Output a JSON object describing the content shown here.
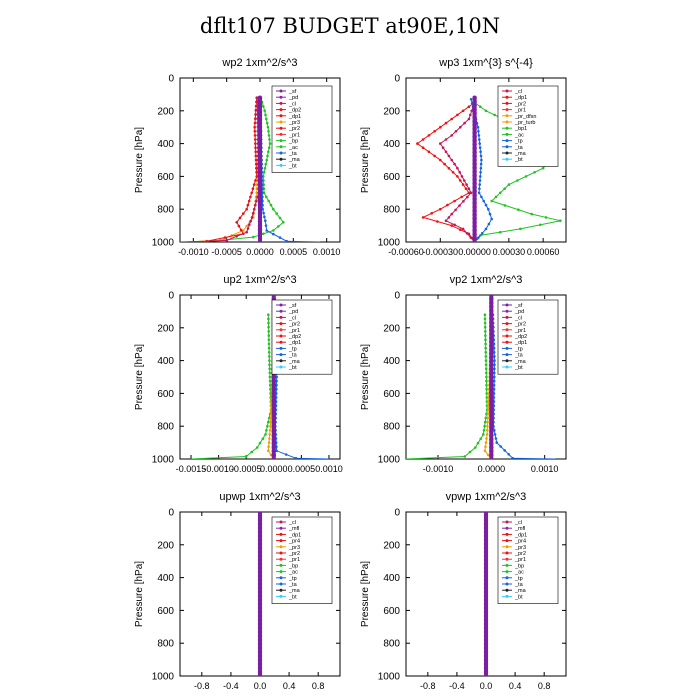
{
  "page": {
    "title": "dflt107  BUDGET at90E,10N"
  },
  "chart_data": [
    {
      "type": "line",
      "title": "wp2  1xm^2/s^3",
      "ylabel": "Pressure [hPa]",
      "ylim": [
        1000,
        0
      ],
      "yticks": [
        "0",
        "200",
        "400",
        "600",
        "800",
        "1000"
      ],
      "xlim": [
        -0.0012,
        0.0012
      ],
      "xticks": [
        -0.001,
        -0.0005,
        0,
        0.0005,
        0.001
      ],
      "xtick_labels": [
        "-0.0010",
        "-0.0005",
        "0.0000",
        "0.0005",
        "0.0010"
      ],
      "legend": [
        "_sf",
        "_pd",
        "_cl",
        "_dp2",
        "_dp1",
        "_pr3",
        "_pr2",
        "_pr1",
        "_bp",
        "_ac",
        "_ta",
        "_ma",
        "_bt"
      ],
      "series": [
        {
          "name": "_pr1",
          "color": "#22c322",
          "points": [
            [
              1e-05,
              120
            ],
            [
              7e-05,
              200
            ],
            [
              0.00012,
              300
            ],
            [
              0.00015,
              400
            ],
            [
              0.0001,
              500
            ],
            [
              5e-05,
              600
            ],
            [
              6e-05,
              700
            ],
            [
              0.0002,
              800
            ],
            [
              0.00035,
              880
            ],
            [
              0.0002,
              930
            ],
            [
              -0.0001,
              970
            ],
            [
              -0.0006,
              990
            ],
            [
              -0.0011,
              1000
            ]
          ]
        },
        {
          "name": "_pr3",
          "color": "#f0a000",
          "points": [
            [
              0,
              120
            ],
            [
              -2e-05,
              400
            ],
            [
              -5e-05,
              700
            ],
            [
              -0.0001,
              850
            ],
            [
              -0.00025,
              930
            ],
            [
              -0.0006,
              990
            ],
            [
              -0.0011,
              1000
            ]
          ]
        },
        {
          "name": "_dp2",
          "color": "#ee1111",
          "points": [
            [
              -5e-05,
              120
            ],
            [
              -8e-05,
              300
            ],
            [
              -5e-05,
              600
            ],
            [
              -0.0002,
              800
            ],
            [
              -0.00035,
              880
            ],
            [
              -0.00025,
              950
            ],
            [
              -0.0008,
              995
            ],
            [
              -0.0012,
              1000
            ]
          ]
        },
        {
          "name": "_cl",
          "color": "#c2185b",
          "points": [
            [
              -4e-05,
              120
            ],
            [
              -3e-05,
              400
            ],
            [
              -2e-05,
              700
            ],
            [
              -0.00012,
              850
            ],
            [
              -0.0002,
              940
            ],
            [
              -0.0005,
              990
            ],
            [
              -0.001,
              1000
            ]
          ]
        },
        {
          "name": "_ac",
          "color": "#1565e0",
          "points": [
            [
              0,
              120
            ],
            [
              2e-05,
              400
            ],
            [
              4e-05,
              800
            ],
            [
              8e-05,
              870
            ],
            [
              0.0001,
              930
            ],
            [
              0.0004,
              995
            ],
            [
              0.0009,
              1000
            ]
          ]
        },
        {
          "name": "_bt",
          "color": "#7b1fa2",
          "points": [
            [
              0,
              120
            ],
            [
              0,
              300
            ],
            [
              0,
              600
            ],
            [
              0,
              800
            ],
            [
              0,
              1000
            ]
          ]
        }
      ]
    },
    {
      "type": "line",
      "title": "wp3  1xm^{3} s^{-4}",
      "ylabel": "Pressure [hPa]",
      "ylim": [
        1000,
        0
      ],
      "yticks": [
        "0",
        "200",
        "400",
        "600",
        "800",
        "1000"
      ],
      "xlim": [
        -0.0006,
        0.0008
      ],
      "xticks": [
        -0.0006,
        -0.0003,
        0,
        0.0003,
        0.0006
      ],
      "xtick_labels": [
        "-0.00060",
        "-0.00030",
        "0.00000",
        "0.00030",
        "0.00060"
      ],
      "legend": [
        "_cl",
        "_dp1",
        "_pr2",
        "_pr1",
        "_pr_dfsn",
        "_pr_turb",
        "_bp1",
        "_ac",
        "_tp",
        "_ta",
        "_ma",
        "_bt"
      ],
      "series": [
        {
          "name": "_bp1",
          "color": "#22c322",
          "points": [
            [
              0,
              150
            ],
            [
              0.0001,
              200
            ],
            [
              0.0004,
              300
            ],
            [
              0.0007,
              450
            ],
            [
              0.0006,
              550
            ],
            [
              0.0003,
              650
            ],
            [
              0.00015,
              750
            ],
            [
              0.0005,
              830
            ],
            [
              0.00075,
              870
            ],
            [
              0.0004,
              920
            ],
            [
              5e-05,
              960
            ],
            [
              0,
              1000
            ]
          ]
        },
        {
          "name": "_pr2",
          "color": "#ee1111",
          "points": [
            [
              0,
              150
            ],
            [
              -0.0001,
              200
            ],
            [
              -0.0003,
              300
            ],
            [
              -0.0005,
              400
            ],
            [
              -0.0003,
              500
            ],
            [
              -0.00015,
              600
            ],
            [
              -5e-05,
              700
            ],
            [
              -0.0003,
              800
            ],
            [
              -0.00045,
              850
            ],
            [
              -0.0002,
              900
            ],
            [
              -5e-05,
              950
            ],
            [
              0,
              1000
            ]
          ]
        },
        {
          "name": "_dp1",
          "color": "#c2185b",
          "points": [
            [
              0,
              150
            ],
            [
              -5e-05,
              250
            ],
            [
              -0.0002,
              350
            ],
            [
              -0.0003,
              400
            ],
            [
              -0.00015,
              550
            ],
            [
              -3e-05,
              700
            ],
            [
              -0.0002,
              830
            ],
            [
              -0.00025,
              870
            ],
            [
              -0.0001,
              920
            ],
            [
              0,
              1000
            ]
          ]
        },
        {
          "name": "_ac",
          "color": "#1565e0",
          "points": [
            [
              -3e-05,
              130
            ],
            [
              3e-05,
              300
            ],
            [
              6e-05,
              500
            ],
            [
              4e-05,
              700
            ],
            [
              0.00012,
              800
            ],
            [
              0.00015,
              860
            ],
            [
              0.0001,
              920
            ],
            [
              0,
              1000
            ]
          ]
        },
        {
          "name": "_bt",
          "color": "#7b1fa2",
          "points": [
            [
              0,
              120
            ],
            [
              0,
              500
            ],
            [
              0,
              1000
            ]
          ]
        }
      ]
    },
    {
      "type": "line",
      "title": "up2  1xm^2/s^3",
      "ylabel": "Pressure [hPa]",
      "ylim": [
        1000,
        0
      ],
      "yticks": [
        "0",
        "200",
        "400",
        "600",
        "800",
        "1000"
      ],
      "xlim": [
        -0.0017,
        0.0012
      ],
      "xticks": [
        -0.0015,
        -0.001,
        -0.0005,
        0,
        0.0005,
        0.001
      ],
      "xtick_labels": [
        "-0.0015",
        "-0.0010",
        "-0.0005",
        "0.0000",
        "0.0005",
        "0.0010"
      ],
      "legend": [
        "_sf",
        "_pd",
        "_cl",
        "_pr2",
        "_pr1",
        "_dp2",
        "_dp1",
        "_tp",
        "_ta",
        "_ma",
        "_bt"
      ],
      "series": [
        {
          "name": "_pr1",
          "color": "#22c322",
          "points": [
            [
              -0.0001,
              120
            ],
            [
              -8e-05,
              400
            ],
            [
              -5e-05,
              700
            ],
            [
              -0.00015,
              850
            ],
            [
              -0.0003,
              930
            ],
            [
              -0.0005,
              985
            ],
            [
              -0.0015,
              1000
            ]
          ]
        },
        {
          "name": "_pr2",
          "color": "#f0a000",
          "points": [
            [
              0,
              120
            ],
            [
              -3e-05,
              500
            ],
            [
              -6e-05,
              800
            ],
            [
              -0.0001,
              950
            ],
            [
              0,
              1000
            ]
          ]
        },
        {
          "name": "_tp",
          "color": "#1565e0",
          "points": [
            [
              3e-05,
              120
            ],
            [
              6e-05,
              400
            ],
            [
              3e-05,
              800
            ],
            [
              5e-05,
              950
            ],
            [
              0.0004,
              995
            ],
            [
              0.001,
              1000
            ]
          ]
        },
        {
          "name": "_bt",
          "color": "#7b1fa2",
          "points": [
            [
              0,
              0
            ],
            [
              0,
              500
            ],
            [
              0,
              1000
            ]
          ]
        }
      ]
    },
    {
      "type": "line",
      "title": "vp2  1xm^2/s^3",
      "ylabel": "Pressure [hPa]",
      "ylim": [
        1000,
        0
      ],
      "yticks": [
        "0",
        "200",
        "400",
        "600",
        "800",
        "1000"
      ],
      "xlim": [
        -0.0016,
        0.0014
      ],
      "xticks": [
        -0.001,
        0,
        0.001
      ],
      "xtick_labels": [
        "-0.0010",
        "0.0000",
        "0.0010"
      ],
      "legend": [
        "_sf",
        "_pd",
        "_cl",
        "_pr2",
        "_pr1",
        "_dp2",
        "_dp1",
        "_tp",
        "_ta",
        "_ma",
        "_bt"
      ],
      "series": [
        {
          "name": "_pr1",
          "color": "#22c322",
          "points": [
            [
              -0.00012,
              120
            ],
            [
              -0.0001,
              400
            ],
            [
              -8e-05,
              700
            ],
            [
              -0.00015,
              850
            ],
            [
              -0.0003,
              930
            ],
            [
              -0.0005,
              985
            ],
            [
              -0.0016,
              1000
            ]
          ]
        },
        {
          "name": "_pr2",
          "color": "#f0a000",
          "points": [
            [
              0,
              120
            ],
            [
              -3e-05,
              500
            ],
            [
              -8e-05,
              850
            ],
            [
              -0.00012,
              950
            ],
            [
              0,
              1000
            ]
          ]
        },
        {
          "name": "_tp",
          "color": "#1565e0",
          "points": [
            [
              3e-05,
              120
            ],
            [
              6e-05,
              400
            ],
            [
              4e-05,
              800
            ],
            [
              0.0001,
              900
            ],
            [
              0.0004,
              995
            ],
            [
              0.0012,
              1000
            ]
          ]
        },
        {
          "name": "_bt",
          "color": "#7b1fa2",
          "points": [
            [
              0,
              0
            ],
            [
              0,
              500
            ],
            [
              0,
              1000
            ]
          ]
        }
      ]
    },
    {
      "type": "line",
      "title": "upwp  1xm^2/s^3",
      "ylabel": "Pressure [hPa]",
      "ylim": [
        1000,
        0
      ],
      "yticks": [
        "0",
        "200",
        "400",
        "600",
        "800",
        "1000"
      ],
      "xlim": [
        -1.1,
        1.1
      ],
      "xticks": [
        -0.8,
        -0.4,
        0,
        0.4,
        0.8
      ],
      "xtick_labels": [
        "-0.8",
        "-0.4",
        "0.0",
        "0.4",
        "0.8"
      ],
      "legend": [
        "_cl",
        "_mfl",
        "_dp1",
        "_pr4",
        "_pr3",
        "_pr2",
        "_pr1",
        "_bp",
        "_ac",
        "_tp",
        "_ta",
        "_ma",
        "_bt"
      ],
      "series": [
        {
          "name": "_bt",
          "color": "#7b1fa2",
          "points": [
            [
              0,
              0
            ],
            [
              0,
              1000
            ]
          ]
        }
      ]
    },
    {
      "type": "line",
      "title": "vpwp  1xm^2/s^3",
      "ylabel": "Pressure [hPa]",
      "ylim": [
        1000,
        0
      ],
      "yticks": [
        "0",
        "200",
        "400",
        "600",
        "800",
        "1000"
      ],
      "xlim": [
        -1.1,
        1.1
      ],
      "xticks": [
        -0.8,
        -0.4,
        0,
        0.4,
        0.8
      ],
      "xtick_labels": [
        "-0.8",
        "-0.4",
        "0.0",
        "0.4",
        "0.8"
      ],
      "legend": [
        "_cl",
        "_mfl",
        "_dp1",
        "_pr4",
        "_pr3",
        "_pr2",
        "_pr1",
        "_bp",
        "_ac",
        "_tp",
        "_ta",
        "_ma",
        "_bt"
      ],
      "series": [
        {
          "name": "_bt",
          "color": "#7b1fa2",
          "points": [
            [
              0,
              0
            ],
            [
              0,
              1000
            ]
          ]
        }
      ]
    }
  ]
}
